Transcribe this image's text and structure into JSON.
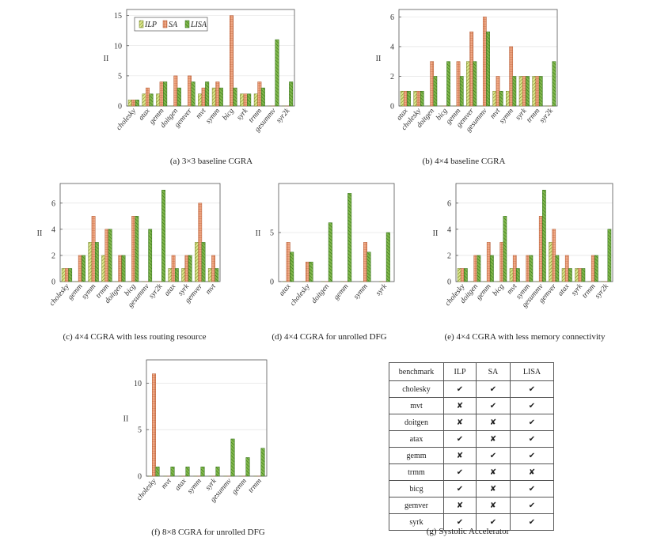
{
  "colors": {
    "ilp": "#d9e48a",
    "sa": "#f0a884",
    "lisa": "#7fb64a",
    "ilp_hatch": "#6c7f20",
    "sa_hatch": "#b0532c",
    "lisa_hatch": "#2f6e14"
  },
  "legend": {
    "ilp": "ILP",
    "sa": "SA",
    "lisa": "LISA"
  },
  "chart_data": [
    {
      "id": "a",
      "type": "bar",
      "caption": "(a) 3×3 baseline CGRA",
      "ylabel": "II",
      "ylim": [
        0,
        16
      ],
      "yticks": [
        0,
        5,
        10,
        15
      ],
      "legend": true,
      "categories": [
        "cholesky",
        "atax",
        "gemm",
        "doitgen",
        "gemver",
        "mvt",
        "symm",
        "bicg",
        "syrk",
        "trmm",
        "gesummv",
        "syr2k"
      ],
      "series": [
        {
          "name": "ILP",
          "values": [
            1,
            2,
            2,
            0,
            0,
            2,
            3,
            0,
            2,
            2,
            0,
            0
          ]
        },
        {
          "name": "SA",
          "values": [
            1,
            3,
            4,
            5,
            5,
            3,
            4,
            15,
            2,
            4,
            0,
            0
          ]
        },
        {
          "name": "LISA",
          "values": [
            1,
            2,
            4,
            3,
            4,
            4,
            3,
            3,
            2,
            3,
            11,
            4
          ]
        }
      ]
    },
    {
      "id": "b",
      "type": "bar",
      "caption": "(b) 4×4 baseline CGRA",
      "ylabel": "II",
      "ylim": [
        0,
        6.5
      ],
      "yticks": [
        0,
        2,
        4,
        6
      ],
      "legend": false,
      "categories": [
        "atax",
        "cholesky",
        "doitgen",
        "bicg",
        "gemm",
        "gemver",
        "gesummv",
        "mvt",
        "symm",
        "syrk",
        "trmm",
        "syr2k"
      ],
      "series": [
        {
          "name": "ILP",
          "values": [
            1,
            1,
            0,
            0,
            0,
            3,
            0,
            1,
            1,
            2,
            2,
            0
          ]
        },
        {
          "name": "SA",
          "values": [
            1,
            1,
            3,
            0,
            3,
            5,
            6,
            2,
            4,
            2,
            2,
            0
          ]
        },
        {
          "name": "LISA",
          "values": [
            1,
            1,
            2,
            3,
            2,
            3,
            5,
            1,
            2,
            2,
            2,
            3
          ]
        }
      ]
    },
    {
      "id": "c",
      "type": "bar",
      "caption": "(c) 4×4 CGRA with less routing resource",
      "ylabel": "II",
      "ylim": [
        0,
        7.5
      ],
      "yticks": [
        0,
        2,
        4,
        6
      ],
      "legend": false,
      "categories": [
        "cholesky",
        "gemm",
        "symm",
        "trmm",
        "doitgen",
        "bicg",
        "gesummv",
        "syr2k",
        "atax",
        "syrk",
        "gemver",
        "mvt"
      ],
      "series": [
        {
          "name": "ILP",
          "values": [
            1,
            0,
            3,
            2,
            0,
            0,
            0,
            0,
            1,
            1,
            3,
            1
          ]
        },
        {
          "name": "SA",
          "values": [
            1,
            2,
            5,
            4,
            2,
            5,
            0,
            0,
            2,
            2,
            6,
            2
          ]
        },
        {
          "name": "LISA",
          "values": [
            1,
            2,
            3,
            4,
            2,
            5,
            4,
            7,
            1,
            2,
            3,
            1
          ]
        }
      ]
    },
    {
      "id": "d",
      "type": "bar",
      "caption": "(d) 4×4 CGRA for unrolled DFG",
      "ylabel": "II",
      "ylim": [
        0,
        10
      ],
      "yticks": [
        0,
        5
      ],
      "legend": false,
      "categories": [
        "atax",
        "cholesky",
        "doitgen",
        "gemm",
        "symm",
        "syrk"
      ],
      "series": [
        {
          "name": "ILP",
          "values": [
            0,
            0,
            0,
            0,
            0,
            0
          ]
        },
        {
          "name": "SA",
          "values": [
            4,
            2,
            0,
            0,
            4,
            0
          ]
        },
        {
          "name": "LISA",
          "values": [
            3,
            2,
            6,
            9,
            3,
            5
          ]
        }
      ]
    },
    {
      "id": "e",
      "type": "bar",
      "caption": "(e) 4×4 CGRA with less memory connectivity",
      "ylabel": "II",
      "ylim": [
        0,
        7.5
      ],
      "yticks": [
        0,
        2,
        4,
        6
      ],
      "legend": false,
      "categories": [
        "cholesky",
        "doitgen",
        "gemm",
        "bicg",
        "mvt",
        "symm",
        "gesummv",
        "gemver",
        "atax",
        "syrk",
        "trmm",
        "syr2k"
      ],
      "series": [
        {
          "name": "ILP",
          "values": [
            1,
            0,
            0,
            0,
            1,
            0,
            0,
            3,
            1,
            1,
            0,
            0
          ]
        },
        {
          "name": "SA",
          "values": [
            1,
            2,
            3,
            3,
            2,
            2,
            5,
            4,
            2,
            1,
            2,
            0
          ]
        },
        {
          "name": "LISA",
          "values": [
            1,
            2,
            2,
            5,
            1,
            2,
            7,
            2,
            1,
            1,
            2,
            4
          ]
        }
      ]
    },
    {
      "id": "f",
      "type": "bar",
      "caption": "(f) 8×8 CGRA for unrolled DFG",
      "ylabel": "II",
      "ylim": [
        0,
        12.5
      ],
      "yticks": [
        0,
        5,
        10
      ],
      "legend": false,
      "categories": [
        "cholesky",
        "mvt",
        "atax",
        "symm",
        "syrk",
        "gesummv",
        "gemm",
        "trmm"
      ],
      "series": [
        {
          "name": "ILP",
          "values": [
            0,
            0,
            0,
            0,
            0,
            0,
            0,
            0
          ]
        },
        {
          "name": "SA",
          "values": [
            11,
            0,
            0,
            0,
            0,
            0,
            0,
            0
          ]
        },
        {
          "name": "LISA",
          "values": [
            1,
            1,
            1,
            1,
            1,
            4,
            2,
            3
          ]
        }
      ]
    },
    {
      "id": "g",
      "type": "table",
      "caption": "(g) Systolic Accelerator",
      "headers": [
        "benchmark",
        "ILP",
        "SA",
        "LISA"
      ],
      "rows": [
        {
          "benchmark": "cholesky",
          "ilp": "✔",
          "sa": "✔",
          "lisa": "✔"
        },
        {
          "benchmark": "mvt",
          "ilp": "✘",
          "sa": "✔",
          "lisa": "✔"
        },
        {
          "benchmark": "doitgen",
          "ilp": "✘",
          "sa": "✘",
          "lisa": "✔"
        },
        {
          "benchmark": "atax",
          "ilp": "✔",
          "sa": "✘",
          "lisa": "✔"
        },
        {
          "benchmark": "gemm",
          "ilp": "✘",
          "sa": "✔",
          "lisa": "✔"
        },
        {
          "benchmark": "trmm",
          "ilp": "✔",
          "sa": "✘",
          "lisa": "✘"
        },
        {
          "benchmark": "bicg",
          "ilp": "✔",
          "sa": "✘",
          "lisa": "✔"
        },
        {
          "benchmark": "gemver",
          "ilp": "✘",
          "sa": "✘",
          "lisa": "✔"
        },
        {
          "benchmark": "syrk",
          "ilp": "✔",
          "sa": "✔",
          "lisa": "✔"
        }
      ]
    }
  ]
}
